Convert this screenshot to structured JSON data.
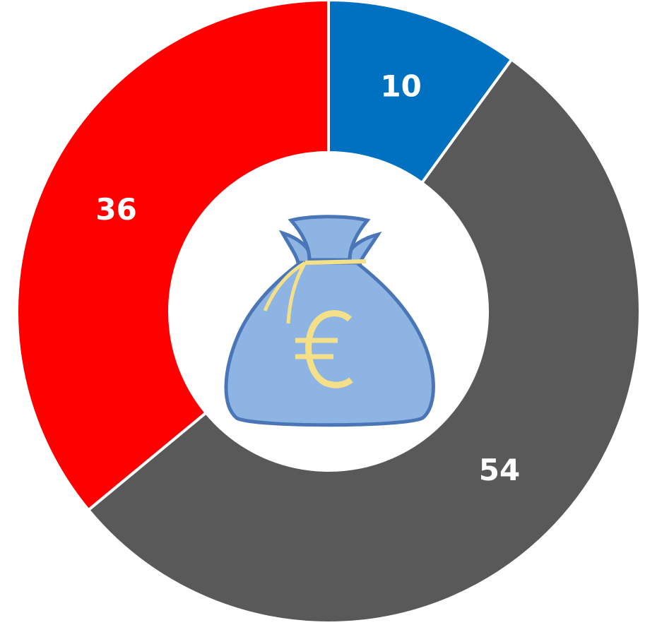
{
  "chart_data": {
    "type": "donut",
    "values": [
      10,
      54,
      36
    ],
    "colors": [
      "#0070c0",
      "#595959",
      "#ff0000"
    ]
  }
}
